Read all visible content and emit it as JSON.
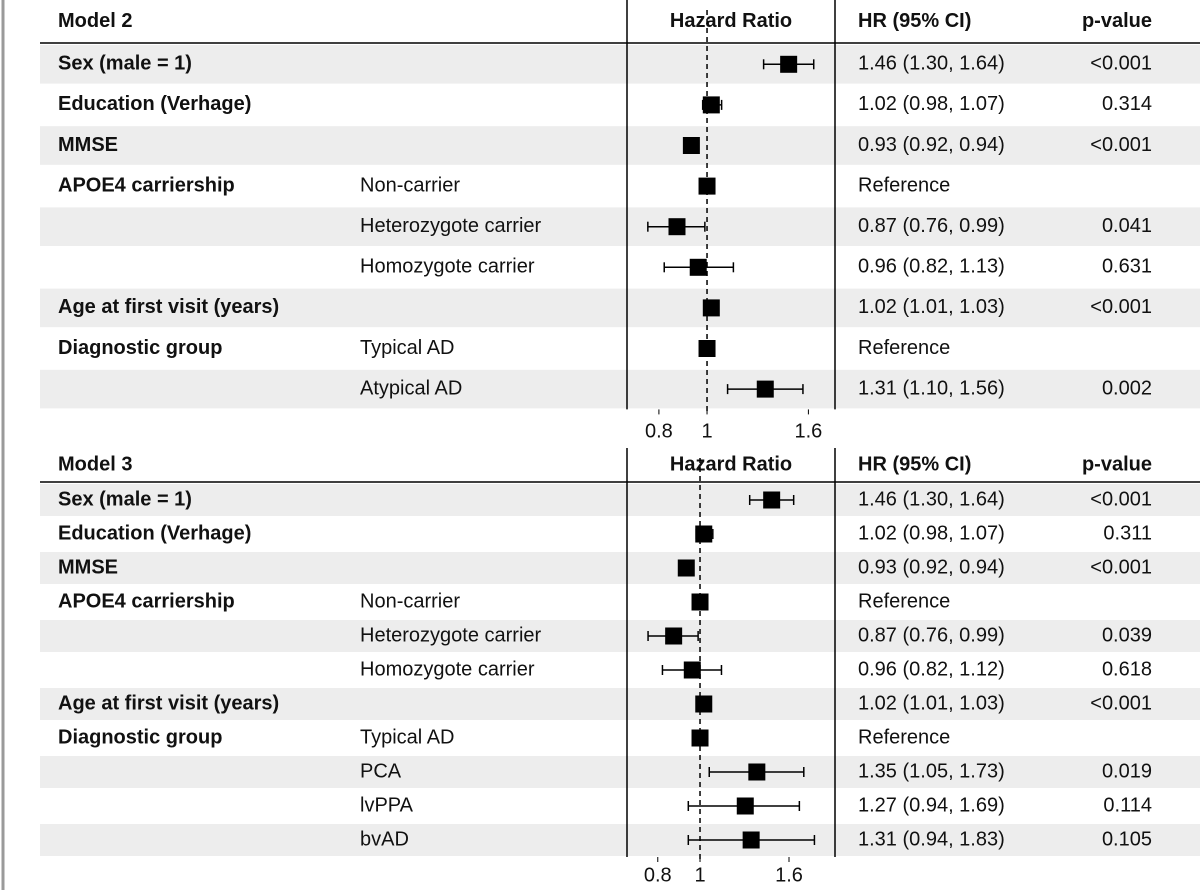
{
  "chart_data": [
    {
      "type": "forest",
      "title": "Model 2",
      "columns": [
        "Hazard Ratio",
        "HR (95% CI)",
        "p-value"
      ],
      "xlim": [
        0.69,
        1.81
      ],
      "xticks": [
        0.8,
        1,
        1.6
      ],
      "log_scale": true,
      "reference_line": 1,
      "marker_color": "#000000",
      "rows": [
        {
          "variable": "Sex (male = 1)",
          "level": null,
          "estimate": 1.46,
          "lower": 1.3,
          "upper": 1.64,
          "ci": "1.46 (1.30, 1.64)",
          "p": "<0.001"
        },
        {
          "variable": "Education (Verhage)",
          "level": null,
          "estimate": 1.02,
          "lower": 0.98,
          "upper": 1.07,
          "ci": "1.02 (0.98, 1.07)",
          "p": "0.314"
        },
        {
          "variable": "MMSE",
          "level": null,
          "estimate": 0.93,
          "lower": 0.92,
          "upper": 0.94,
          "ci": "0.93 (0.92, 0.94)",
          "p": "<0.001"
        },
        {
          "variable": "APOE4 carriership",
          "level": "Non-carrier",
          "estimate": 1,
          "lower": null,
          "upper": null,
          "ci": "Reference",
          "p": null
        },
        {
          "variable": null,
          "level": "Heterozygote carrier",
          "estimate": 0.87,
          "lower": 0.76,
          "upper": 0.99,
          "ci": "0.87 (0.76, 0.99)",
          "p": "0.041"
        },
        {
          "variable": null,
          "level": "Homozygote carrier",
          "estimate": 0.96,
          "lower": 0.82,
          "upper": 1.13,
          "ci": "0.96 (0.82, 1.13)",
          "p": "0.631"
        },
        {
          "variable": "Age at first visit (years)",
          "level": null,
          "estimate": 1.02,
          "lower": 1.01,
          "upper": 1.03,
          "ci": "1.02 (1.01, 1.03)",
          "p": "<0.001"
        },
        {
          "variable": "Diagnostic group",
          "level": "Typical AD",
          "estimate": 1,
          "lower": null,
          "upper": null,
          "ci": "Reference",
          "p": null
        },
        {
          "variable": null,
          "level": "Atypical AD",
          "level_color": "#808080",
          "estimate": 1.31,
          "lower": 1.1,
          "upper": 1.56,
          "ci": "1.31 (1.10, 1.56)",
          "p": "0.002"
        }
      ]
    },
    {
      "type": "forest",
      "title": "Model 3",
      "columns": [
        "Hazard Ratio",
        "HR (95% CI)",
        "p-value"
      ],
      "xlim": [
        0.68,
        2.04
      ],
      "xticks": [
        0.8,
        1,
        1.6
      ],
      "log_scale": true,
      "reference_line": 1,
      "marker_color": "#000000",
      "rows": [
        {
          "variable": "Sex (male = 1)",
          "level": null,
          "estimate": 1.46,
          "lower": 1.3,
          "upper": 1.64,
          "ci": "1.46 (1.30, 1.64)",
          "p": "<0.001"
        },
        {
          "variable": "Education (Verhage)",
          "level": null,
          "estimate": 1.02,
          "lower": 0.98,
          "upper": 1.07,
          "ci": "1.02 (0.98, 1.07)",
          "p": "0.311"
        },
        {
          "variable": "MMSE",
          "level": null,
          "estimate": 0.93,
          "lower": 0.92,
          "upper": 0.94,
          "ci": "0.93 (0.92, 0.94)",
          "p": "<0.001"
        },
        {
          "variable": "APOE4 carriership",
          "level": "Non-carrier",
          "estimate": 1,
          "lower": null,
          "upper": null,
          "ci": "Reference",
          "p": null
        },
        {
          "variable": null,
          "level": "Heterozygote carrier",
          "estimate": 0.87,
          "lower": 0.76,
          "upper": 0.99,
          "ci": "0.87 (0.76, 0.99)",
          "p": "0.039"
        },
        {
          "variable": null,
          "level": "Homozygote carrier",
          "estimate": 0.96,
          "lower": 0.82,
          "upper": 1.12,
          "ci": "0.96 (0.82, 1.12)",
          "p": "0.618"
        },
        {
          "variable": "Age at first visit (years)",
          "level": null,
          "estimate": 1.02,
          "lower": 1.01,
          "upper": 1.03,
          "ci": "1.02 (1.01, 1.03)",
          "p": "<0.001"
        },
        {
          "variable": "Diagnostic group",
          "level": "Typical AD",
          "estimate": 1,
          "lower": null,
          "upper": null,
          "ci": "Reference",
          "p": null
        },
        {
          "variable": null,
          "level": "PCA",
          "level_color": "#a6192e",
          "estimate": 1.35,
          "lower": 1.05,
          "upper": 1.73,
          "ci": "1.35 (1.05, 1.73)",
          "p": "0.019"
        },
        {
          "variable": null,
          "level": "lvPPA",
          "level_color": "#6aaed6",
          "estimate": 1.27,
          "lower": 0.94,
          "upper": 1.69,
          "ci": "1.27 (0.94, 1.69)",
          "p": "0.114"
        },
        {
          "variable": null,
          "level": "bvAD",
          "level_color": "#2e8b2e",
          "estimate": 1.31,
          "lower": 0.94,
          "upper": 1.83,
          "ci": "1.31 (0.94, 1.83)",
          "p": "0.105"
        }
      ]
    }
  ]
}
